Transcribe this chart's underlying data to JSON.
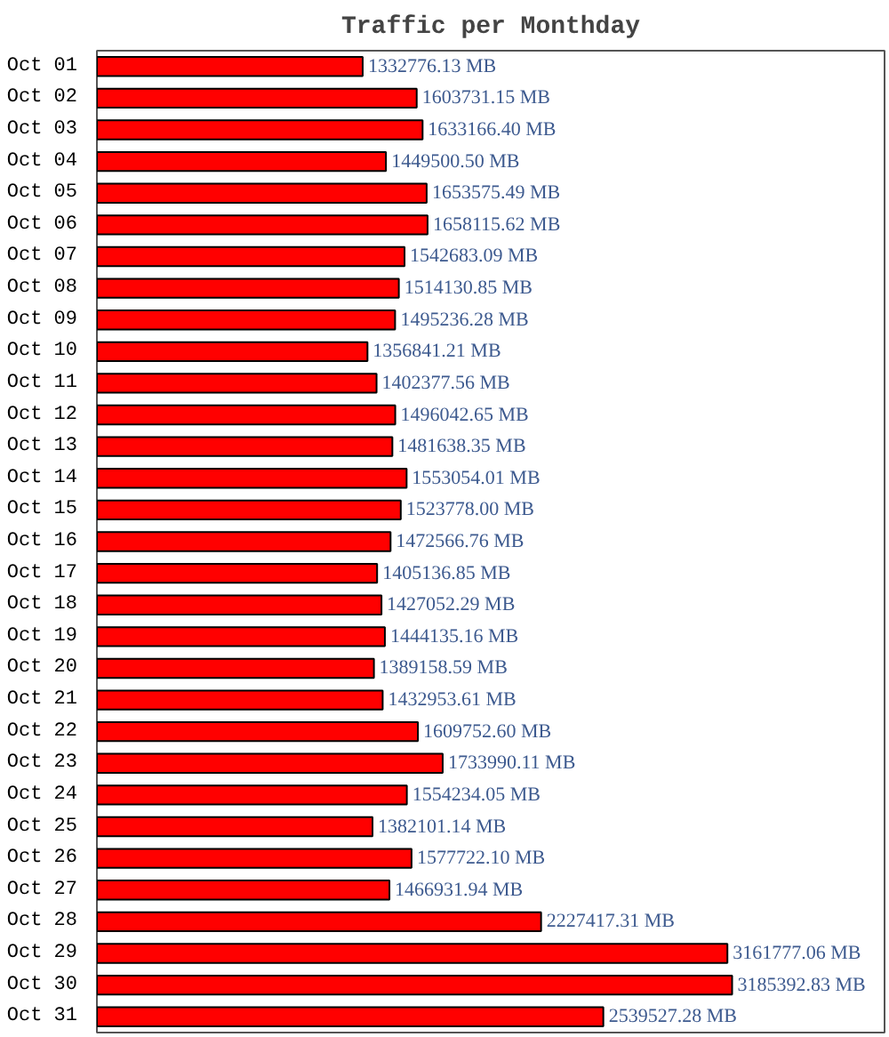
{
  "chart_data": {
    "type": "bar",
    "orientation": "horizontal",
    "title": "Traffic per Monthday",
    "color": "#ff0000",
    "categories": [
      "Oct 01",
      "Oct 02",
      "Oct 03",
      "Oct 04",
      "Oct 05",
      "Oct 06",
      "Oct 07",
      "Oct 08",
      "Oct 09",
      "Oct 10",
      "Oct 11",
      "Oct 12",
      "Oct 13",
      "Oct 14",
      "Oct 15",
      "Oct 16",
      "Oct 17",
      "Oct 18",
      "Oct 19",
      "Oct 20",
      "Oct 21",
      "Oct 22",
      "Oct 23",
      "Oct 24",
      "Oct 25",
      "Oct 26",
      "Oct 27",
      "Oct 28",
      "Oct 29",
      "Oct 30",
      "Oct 31"
    ],
    "values": [
      1332776.13,
      1603731.15,
      1633166.4,
      1449500.5,
      1653575.49,
      1658115.62,
      1542683.09,
      1514130.85,
      1495236.28,
      1356841.21,
      1402377.56,
      1496042.65,
      1481638.35,
      1553054.01,
      1523778.0,
      1472566.76,
      1405136.85,
      1427052.29,
      1444135.16,
      1389158.59,
      1432953.61,
      1609752.6,
      1733990.11,
      1554234.05,
      1382101.14,
      1577722.1,
      1466931.94,
      2227417.31,
      3161777.06,
      3185392.83,
      2539527.28
    ],
    "value_labels": [
      "1332776.13 MB",
      "1603731.15 MB",
      "1633166.40 MB",
      "1449500.50 MB",
      "1653575.49 MB",
      "1658115.62 MB",
      "1542683.09 MB",
      "1514130.85 MB",
      "1495236.28 MB",
      "1356841.21 MB",
      "1402377.56 MB",
      "1496042.65 MB",
      "1481638.35 MB",
      "1553054.01 MB",
      "1523778.00 MB",
      "1472566.76 MB",
      "1405136.85 MB",
      "1427052.29 MB",
      "1444135.16 MB",
      "1389158.59 MB",
      "1432953.61 MB",
      "1609752.60 MB",
      "1733990.11 MB",
      "1554234.05 MB",
      "1382101.14 MB",
      "1577722.10 MB",
      "1466931.94 MB",
      "2227417.31 MB",
      "3161777.06 MB",
      "3185392.83 MB",
      "2539527.28 MB"
    ]
  }
}
